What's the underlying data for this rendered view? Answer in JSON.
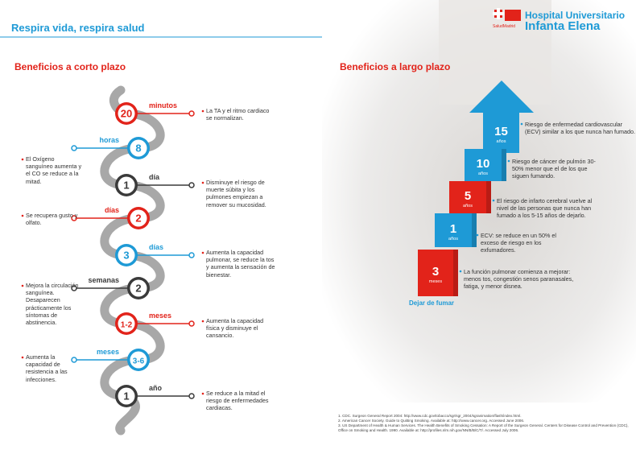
{
  "header": {
    "title": "Respira vida, respira salud"
  },
  "logo": {
    "line1": "Hospital Universitario",
    "line2": "Infanta Elena",
    "brand": "SaludMadrid"
  },
  "short_term": {
    "title": "Beneficios a corto plazo",
    "items": [
      {
        "number": "20",
        "unit": "minutos",
        "text": "La TA y el ritmo cardiaco se normalizan.",
        "color": "#e2231a"
      },
      {
        "number": "8",
        "unit": "horas",
        "text": "El Oxígeno sanguíneo aumenta y el CO se reduce a la mitad.",
        "color": "#1e9ad6"
      },
      {
        "number": "1",
        "unit": "día",
        "text": "Disminuye el riesgo de muerte súbita y los pulmones empiezan a remover su mucosidad.",
        "color": "#3a3a3a"
      },
      {
        "number": "2",
        "unit": "días",
        "text": "Se recupera gusto y olfato.",
        "color": "#e2231a"
      },
      {
        "number": "3",
        "unit": "días",
        "text": "Aumenta la capacidad pulmonar, se reduce la tos y aumenta la sensación de bienestar.",
        "color": "#1e9ad6"
      },
      {
        "number": "2",
        "unit": "semanas",
        "text": "Mejora la circulación sanguínea. Desaparecen prácticamente los síntomas de abstinencia.",
        "color": "#3a3a3a"
      },
      {
        "number": "1-2",
        "unit": "meses",
        "text": "Aumenta la capacidad física y disminuye el cansancio.",
        "color": "#e2231a"
      },
      {
        "number": "3-6",
        "unit": "meses",
        "text": "Aumenta la capacidad de resistencia a las infecciones.",
        "color": "#1e9ad6"
      },
      {
        "number": "1",
        "unit": "año",
        "text": "Se reduce a la mitad el riesgo de enfermedades cardiacas.",
        "color": "#3a3a3a"
      }
    ]
  },
  "long_term": {
    "title": "Beneficios a largo plazo",
    "steps": [
      {
        "number": "15",
        "unit": "años",
        "text": "Riesgo de enfermedad cardiovascular (ECV) similar a los que nunca han fumado.",
        "color": "#1e9ad6"
      },
      {
        "number": "10",
        "unit": "años",
        "text": "Riesgo de cáncer de pulmón 30-50% menor que el de los que siguen fumando.",
        "color": "#1e9ad6"
      },
      {
        "number": "5",
        "unit": "años",
        "text": "El riesgo de infarto cerebral vuelve al nivel de las personas que nunca han fumado a los 5-15 años de dejarlo.",
        "color": "#e2231a"
      },
      {
        "number": "1",
        "unit": "años",
        "text": "ECV: se reduce en un 50% el exceso de riesgo en los exfumadores.",
        "color": "#1e9ad6"
      },
      {
        "number": "3",
        "unit": "meses",
        "text": "La función pulmonar comienza a mejorar: menos tos, congestión senos paranasales, fatiga, y menor disnea.",
        "color": "#e2231a"
      }
    ],
    "base_label": "Dejar de fumar"
  },
  "footnotes": [
    "1. CDC. Surgeon General Report 2004: http://www.cdc.gov/tobacco/sgr/sgr_2004/sgranimation/flash/index.html.",
    "2. American Cancer Society. Guide to Quitting Smoking. Available at: http://www.cancer.org. Accessed June 2006.",
    "3. US Department of Health & Human Services. The Health Benefits of Smoking Cessation: A Report of the Surgeon General. Centers for Disease Control and Prevention (CDC), Office on Smoking and Health. 1990. Available at: http://profiles.nlm.nih.gov/NN/B/B/C/T/. Accessed July 2006."
  ]
}
